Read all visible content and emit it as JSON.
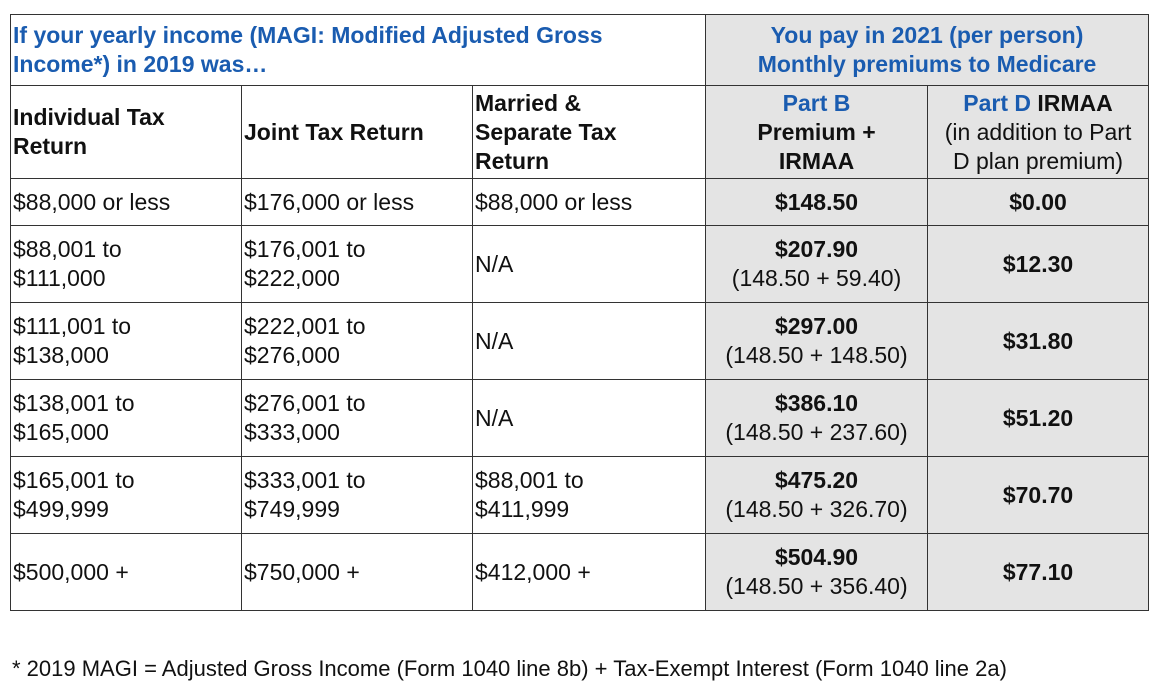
{
  "header": {
    "income_title_line1": "If your yearly income (MAGI: Modified Adjusted Gross",
    "income_title_line2": "Income*) in 2019 was…",
    "pay_title_line1": "You pay in 2021 (per person)",
    "pay_title_line2": "Monthly premiums to Medicare"
  },
  "columns": {
    "individual_line1": "Individual Tax",
    "individual_line2": "Return",
    "joint": "Joint Tax Return",
    "married_line1": "Married &",
    "married_line2": "Separate Tax",
    "married_line3": "Return",
    "partb_line1": "Part B",
    "partb_line2": "Premium +",
    "partb_line3": "IRMAA",
    "partd_blue": "Part D",
    "partd_black": " IRMAA",
    "partd_line2": "(in addition to Part",
    "partd_line3": "D plan premium)"
  },
  "rows": [
    {
      "individual": [
        "$88,000 or less"
      ],
      "joint": [
        "$176,000 or less"
      ],
      "married": [
        "$88,000 or less"
      ],
      "partb_total": "$148.50",
      "partb_detail": "",
      "partd": "$0.00"
    },
    {
      "individual": [
        "$88,001 to",
        "$111,000"
      ],
      "joint": [
        "$176,001 to",
        "$222,000"
      ],
      "married": [
        "N/A"
      ],
      "partb_total": "$207.90",
      "partb_detail": "(148.50 + 59.40)",
      "partd": "$12.30"
    },
    {
      "individual": [
        "$111,001 to",
        "$138,000"
      ],
      "joint": [
        "$222,001 to",
        "$276,000"
      ],
      "married": [
        "N/A"
      ],
      "partb_total": "$297.00",
      "partb_detail": "(148.50 + 148.50)",
      "partd": "$31.80"
    },
    {
      "individual": [
        "$138,001 to",
        "$165,000"
      ],
      "joint": [
        "$276,001 to",
        "$333,000"
      ],
      "married": [
        "N/A"
      ],
      "partb_total": "$386.10",
      "partb_detail": "(148.50 + 237.60)",
      "partd": "$51.20"
    },
    {
      "individual": [
        "$165,001 to",
        "$499,999"
      ],
      "joint": [
        "$333,001 to",
        "$749,999"
      ],
      "married": [
        "$88,001 to",
        "$411,999"
      ],
      "partb_total": "$475.20",
      "partb_detail": "(148.50 + 326.70)",
      "partd": "$70.70"
    },
    {
      "individual": [
        "$500,000 +"
      ],
      "joint": [
        "$750,000 +"
      ],
      "married": [
        "$412,000 +"
      ],
      "partb_total": "$504.90",
      "partb_detail": "(148.50 + 356.40)",
      "partd": "$77.10"
    }
  ],
  "footnote": "* 2019 MAGI = Adjusted Gross Income (Form 1040 line 8b) + Tax-Exempt Interest (Form 1040 line 2a)",
  "colors": {
    "heading_blue": "#1a5cb0",
    "shaded_cell": "#e4e4e4",
    "border": "#333333"
  }
}
